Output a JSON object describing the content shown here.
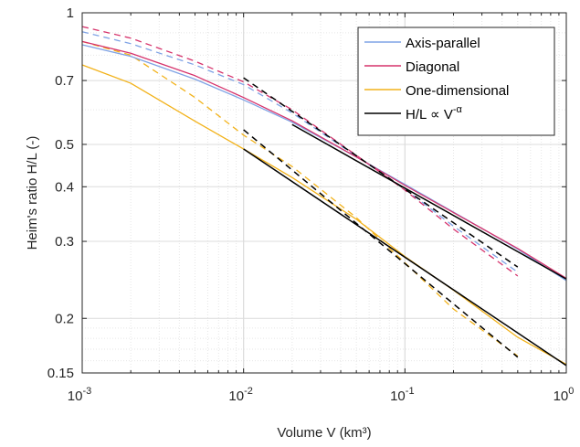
{
  "chart_data": {
    "type": "line",
    "xscale": "log",
    "yscale": "log",
    "xlim": [
      0.001,
      1
    ],
    "ylim": [
      0.15,
      1
    ],
    "grid": true,
    "minor_grid": true,
    "legend_placement": "top-right",
    "xlabel": "Volume V (km³)",
    "ylabel": "Heim's ratio H/L (-)",
    "xticks": [
      {
        "value": 0.001,
        "base": "10",
        "exp": "-3"
      },
      {
        "value": 0.01,
        "base": "10",
        "exp": "-2"
      },
      {
        "value": 0.1,
        "base": "10",
        "exp": "-1"
      },
      {
        "value": 1,
        "base": "10",
        "exp": "0"
      }
    ],
    "yticks": [
      {
        "value": 0.15,
        "label": "0.15"
      },
      {
        "value": 0.2,
        "label": "0.2"
      },
      {
        "value": 0.3,
        "label": "0.3"
      },
      {
        "value": 0.4,
        "label": "0.4"
      },
      {
        "value": 0.5,
        "label": "0.5"
      },
      {
        "value": 0.7,
        "label": "0.7"
      },
      {
        "value": 1,
        "label": "1"
      }
    ],
    "legend": [
      {
        "key": "axis",
        "label": "Axis-parallel",
        "color": "#7fa3e5",
        "super": ""
      },
      {
        "key": "diag",
        "label": "Diagonal",
        "color": "#d6336c",
        "super": ""
      },
      {
        "key": "oned",
        "label": "One-dimensional",
        "color": "#f2b21a",
        "super": ""
      },
      {
        "key": "fit",
        "label": "H/L ∝ V",
        "color": "#000000",
        "super": "-α"
      }
    ],
    "series": [
      {
        "key": "axis",
        "style": "solid",
        "color": "#7fa3e5",
        "x": [
          0.001,
          0.002,
          0.005,
          0.01,
          0.02,
          0.05,
          0.1,
          0.2,
          0.5,
          1
        ],
        "y": [
          0.845,
          0.795,
          0.705,
          0.632,
          0.562,
          0.468,
          0.405,
          0.35,
          0.288,
          0.244
        ]
      },
      {
        "key": "diag",
        "style": "solid",
        "color": "#d6336c",
        "x": [
          0.001,
          0.002,
          0.005,
          0.01,
          0.02,
          0.05,
          0.1,
          0.2,
          0.5,
          1
        ],
        "y": [
          0.86,
          0.808,
          0.718,
          0.64,
          0.566,
          0.468,
          0.403,
          0.349,
          0.289,
          0.247
        ]
      },
      {
        "key": "oned",
        "style": "solid",
        "color": "#f2b21a",
        "x": [
          0.001,
          0.002,
          0.005,
          0.01,
          0.02,
          0.05,
          0.1,
          0.2,
          0.5,
          1
        ],
        "y": [
          0.76,
          0.69,
          0.565,
          0.488,
          0.42,
          0.337,
          0.277,
          0.232,
          0.181,
          0.157
        ]
      },
      {
        "key": "axis",
        "style": "dashed",
        "color": "#7fa3e5",
        "x": [
          0.001,
          0.002,
          0.005,
          0.01,
          0.02,
          0.05,
          0.1,
          0.2,
          0.5
        ],
        "y": [
          0.905,
          0.85,
          0.76,
          0.685,
          0.59,
          0.47,
          0.395,
          0.325,
          0.255
        ]
      },
      {
        "key": "diag",
        "style": "dashed",
        "color": "#d6336c",
        "x": [
          0.001,
          0.002,
          0.005,
          0.01,
          0.02,
          0.05,
          0.1,
          0.2,
          0.5
        ],
        "y": [
          0.93,
          0.875,
          0.775,
          0.695,
          0.6,
          0.472,
          0.393,
          0.32,
          0.25
        ]
      },
      {
        "key": "oned",
        "style": "dashed",
        "color": "#f2b21a",
        "x": [
          0.001,
          0.002,
          0.005,
          0.01,
          0.02,
          0.05,
          0.1,
          0.2,
          0.5
        ],
        "y": [
          0.86,
          0.8,
          0.64,
          0.525,
          0.445,
          0.34,
          0.268,
          0.21,
          0.164
        ]
      },
      {
        "key": "fit",
        "style": "solid",
        "color": "#000000",
        "x": [
          0.01,
          1
        ],
        "y": [
          0.488,
          0.156
        ]
      },
      {
        "key": "fit",
        "style": "solid",
        "color": "#000000",
        "x": [
          0.02,
          1
        ],
        "y": [
          0.555,
          0.246
        ]
      },
      {
        "key": "fit",
        "style": "dashed",
        "color": "#000000",
        "x": [
          0.01,
          0.5
        ],
        "y": [
          0.54,
          0.163
        ]
      },
      {
        "key": "fit",
        "style": "dashed",
        "color": "#000000",
        "x": [
          0.01,
          0.5
        ],
        "y": [
          0.71,
          0.262
        ]
      }
    ]
  }
}
